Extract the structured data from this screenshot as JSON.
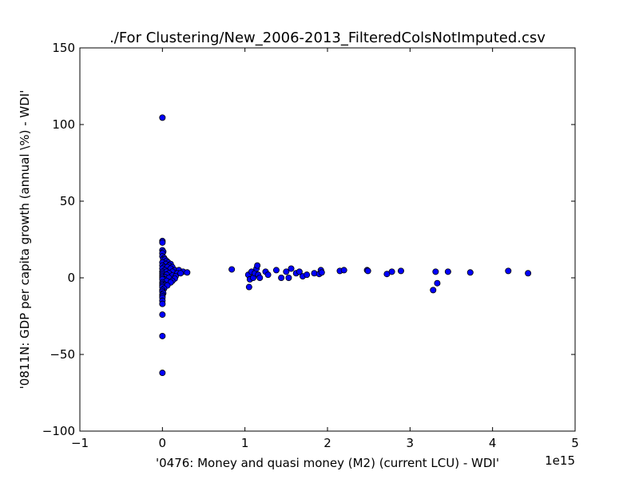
{
  "chart_data": {
    "type": "scatter",
    "title": "./For Clustering/New_2006-2013_FilteredColsNotImputed.csv",
    "xlabel": "'0476: Money and quasi money (M2)  (current LCU) - WDI'",
    "ylabel": "'0811N: GDP per capita growth  (annual \\%) - WDI'",
    "x_offset_label": "1e15",
    "x_scale": 1000000000000000.0,
    "xlim": [
      -1,
      5
    ],
    "ylim": [
      -100,
      150
    ],
    "x_ticks": [
      -1,
      0,
      1,
      2,
      3,
      4,
      5
    ],
    "x_tick_labels": [
      "−1",
      "0",
      "1",
      "2",
      "3",
      "4",
      "5"
    ],
    "y_ticks": [
      -100,
      -50,
      0,
      50,
      100,
      150
    ],
    "y_tick_labels": [
      "−100",
      "−50",
      "0",
      "50",
      "100",
      "150"
    ],
    "grid": false,
    "marker_color": "#0000ff",
    "marker_edge_color": "#000000",
    "series": [
      {
        "points": [
          [
            0.0,
            104.5
          ],
          [
            0.0,
            24
          ],
          [
            0.0,
            23
          ],
          [
            0.0,
            18
          ],
          [
            0.01,
            17
          ],
          [
            0.0,
            16
          ],
          [
            0.0,
            14
          ],
          [
            0.02,
            13
          ],
          [
            0.01,
            12
          ],
          [
            0.03,
            12
          ],
          [
            0.05,
            11
          ],
          [
            0.07,
            10
          ],
          [
            0.0,
            10
          ],
          [
            0.1,
            9
          ],
          [
            0.04,
            9
          ],
          [
            0.0,
            8
          ],
          [
            0.08,
            8
          ],
          [
            0.12,
            7
          ],
          [
            0.02,
            7
          ],
          [
            0.06,
            7
          ],
          [
            0.0,
            6
          ],
          [
            0.1,
            6
          ],
          [
            0.15,
            5
          ],
          [
            0.03,
            5
          ],
          [
            0.2,
            5
          ],
          [
            0.0,
            4
          ],
          [
            0.12,
            4
          ],
          [
            0.25,
            4
          ],
          [
            0.05,
            4
          ],
          [
            0.3,
            3.5
          ],
          [
            0.0,
            3
          ],
          [
            0.08,
            3
          ],
          [
            0.18,
            3
          ],
          [
            0.22,
            3
          ],
          [
            0.0,
            2
          ],
          [
            0.05,
            2
          ],
          [
            0.12,
            1.5
          ],
          [
            0.16,
            1
          ],
          [
            0.0,
            1
          ],
          [
            0.03,
            0.5
          ],
          [
            0.0,
            0
          ],
          [
            0.08,
            0
          ],
          [
            0.15,
            -0.5
          ],
          [
            0.02,
            -1
          ],
          [
            0.0,
            -1
          ],
          [
            0.12,
            -2
          ],
          [
            0.05,
            -2
          ],
          [
            0.0,
            -3
          ],
          [
            0.1,
            -3
          ],
          [
            0.0,
            -4
          ],
          [
            0.03,
            -4.5
          ],
          [
            0.0,
            -5
          ],
          [
            0.06,
            -5
          ],
          [
            0.0,
            -6
          ],
          [
            0.02,
            -7
          ],
          [
            0.0,
            -8
          ],
          [
            0.0,
            -9
          ],
          [
            0.01,
            -10
          ],
          [
            0.0,
            -11
          ],
          [
            0.0,
            -12
          ],
          [
            0.0,
            -13
          ],
          [
            0.0,
            -15
          ],
          [
            0.0,
            -17
          ],
          [
            0.0,
            -24
          ],
          [
            0.0,
            -38
          ],
          [
            0.0,
            -62
          ],
          [
            0.84,
            5.5
          ],
          [
            1.04,
            2
          ],
          [
            1.06,
            -1
          ],
          [
            1.05,
            -6
          ],
          [
            1.08,
            4
          ],
          [
            1.1,
            0
          ],
          [
            1.12,
            3
          ],
          [
            1.14,
            6
          ],
          [
            1.16,
            2
          ],
          [
            1.15,
            8
          ],
          [
            1.18,
            0
          ],
          [
            1.25,
            4
          ],
          [
            1.28,
            2
          ],
          [
            1.38,
            5
          ],
          [
            1.44,
            0
          ],
          [
            1.5,
            4
          ],
          [
            1.53,
            0
          ],
          [
            1.56,
            6
          ],
          [
            1.62,
            3
          ],
          [
            1.66,
            4
          ],
          [
            1.7,
            1
          ],
          [
            1.75,
            2
          ],
          [
            1.84,
            3
          ],
          [
            1.9,
            2.5
          ],
          [
            1.92,
            5
          ],
          [
            1.93,
            3.5
          ],
          [
            2.15,
            4.5
          ],
          [
            2.2,
            5
          ],
          [
            2.48,
            5
          ],
          [
            2.49,
            4.5
          ],
          [
            2.72,
            2.5
          ],
          [
            2.78,
            4
          ],
          [
            2.89,
            4.5
          ],
          [
            3.28,
            -8
          ],
          [
            3.31,
            4
          ],
          [
            3.33,
            -3.5
          ],
          [
            3.46,
            4
          ],
          [
            3.73,
            3.5
          ],
          [
            4.19,
            4.5
          ],
          [
            4.43,
            3
          ]
        ]
      }
    ]
  }
}
